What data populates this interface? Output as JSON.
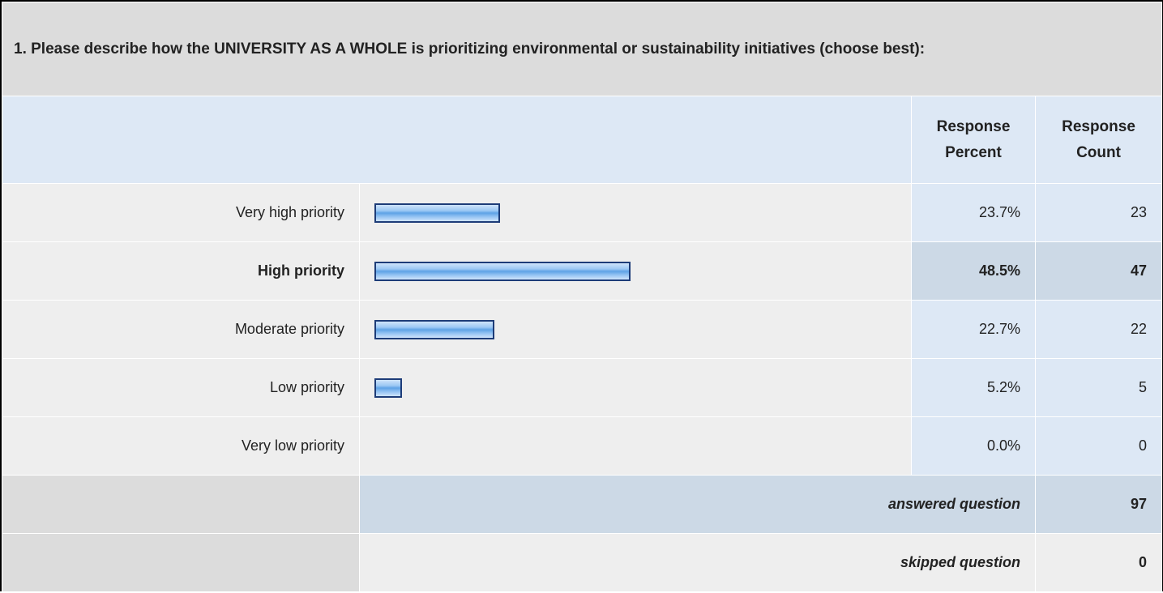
{
  "question": "1. Please describe how the UNIVERSITY AS A WHOLE is prioritizing environmental or sustainability initiatives (choose best):",
  "headers": [
    "Response Percent",
    "Response Count"
  ],
  "rows": [
    {
      "label": "Very high priority",
      "percent": {
        "value": 23.7,
        "label": "23.7%"
      },
      "count": 23
    },
    {
      "label": "High priority",
      "percent": {
        "value": 48.5,
        "label": "48.5%"
      },
      "count": 47
    },
    {
      "label": "Moderate priority",
      "percent": {
        "value": 22.7,
        "label": "22.7%"
      },
      "count": 22
    },
    {
      "label": "Low priority",
      "percent": {
        "value": 5.2,
        "label": "5.2%"
      },
      "count": 5
    },
    {
      "label": "Very low priority",
      "percent": {
        "value": 0.0,
        "label": "0.0%"
      },
      "count": 0
    }
  ],
  "footer": [
    {
      "label": "answered question",
      "value": 97
    },
    {
      "label": "skipped question",
      "value": 0
    }
  ]
}
